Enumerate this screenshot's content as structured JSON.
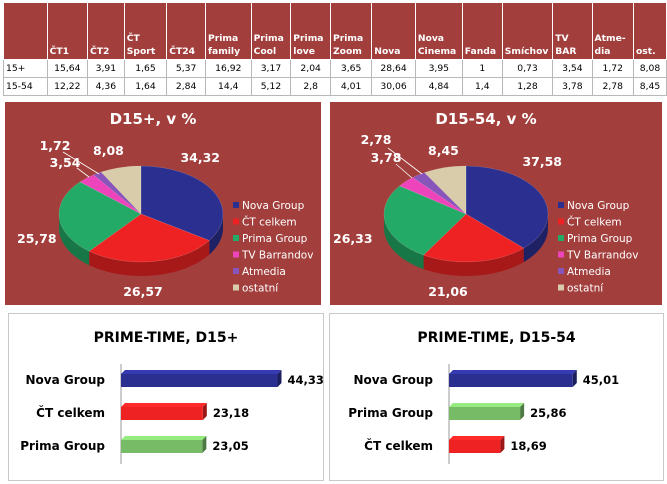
{
  "table": {
    "headers": [
      "",
      "ČT1",
      "ČT2",
      "ČT\nSport",
      "ČT24",
      "Prima\nfamily",
      "Prima\nCool",
      "Prima\nlove",
      "Prima\nZoom",
      "Nova",
      "Nova\nCinema",
      "Fanda",
      "Smíchov",
      "TV\nBAR",
      "Atme-\ndia",
      "ost."
    ],
    "rows": [
      {
        "label": "15+",
        "values": [
          "15,64",
          "3,91",
          "1,65",
          "5,37",
          "16,92",
          "3,17",
          "2,04",
          "3,65",
          "28,64",
          "3,95",
          "1",
          "0,73",
          "3,54",
          "1,72",
          "8,08"
        ]
      },
      {
        "label": "15-54",
        "values": [
          "12,22",
          "4,36",
          "1,64",
          "2,84",
          "14,4",
          "5,12",
          "2,8",
          "4,01",
          "30,06",
          "4,84",
          "1,4",
          "1,28",
          "3,78",
          "2,78",
          "8,45"
        ]
      }
    ]
  },
  "colors": {
    "panel_bg": "#a23f3d",
    "nova": "#2b2f8f",
    "ct": "#ee2222",
    "prima": "#22aa66",
    "barrandov": "#ee44bb",
    "atmedia": "#8855bb",
    "ostatni": "#d8ccaa",
    "prime_nova": "#2b2f8f",
    "prime_ct": "#ee2222",
    "prime_prima": "#77bb66"
  },
  "chart_data": [
    {
      "type": "pie",
      "title": "D15+, v %",
      "categories": [
        "Nova Group",
        "ČT celkem",
        "Prima Group",
        "TV Barrandov",
        "Atmedia",
        "ostatní"
      ],
      "values": [
        34.32,
        26.57,
        25.78,
        3.54,
        1.72,
        8.08
      ],
      "labels": [
        "34,32",
        "26,57",
        "25,78",
        "3,54",
        "1,72",
        "8,08"
      ],
      "legend": "right"
    },
    {
      "type": "pie",
      "title": "D15-54, v %",
      "categories": [
        "Nova Group",
        "ČT celkem",
        "Prima Group",
        "TV Barrandov",
        "Atmedia",
        "ostatní"
      ],
      "values": [
        37.58,
        21.06,
        26.33,
        3.78,
        2.78,
        8.45
      ],
      "labels": [
        "37,58",
        "21,06",
        "26,33",
        "3,78",
        "2,78",
        "8,45"
      ],
      "legend": "right"
    },
    {
      "type": "bar",
      "orientation": "horizontal",
      "title": "PRIME-TIME, D15+",
      "categories": [
        "Nova Group",
        "ČT celkem",
        "Prima Group"
      ],
      "values": [
        44.33,
        23.18,
        23.05
      ],
      "labels": [
        "44,33",
        "23,18",
        "23,05"
      ],
      "colors_keys": [
        "prime_nova",
        "prime_ct",
        "prime_prima"
      ]
    },
    {
      "type": "bar",
      "orientation": "horizontal",
      "title": "PRIME-TIME, D15-54",
      "categories": [
        "Nova Group",
        "Prima Group",
        "ČT celkem"
      ],
      "values": [
        45.01,
        25.86,
        18.69
      ],
      "labels": [
        "45,01",
        "25,86",
        "18,69"
      ],
      "colors_keys": [
        "prime_nova",
        "prime_prima",
        "prime_ct"
      ]
    }
  ]
}
